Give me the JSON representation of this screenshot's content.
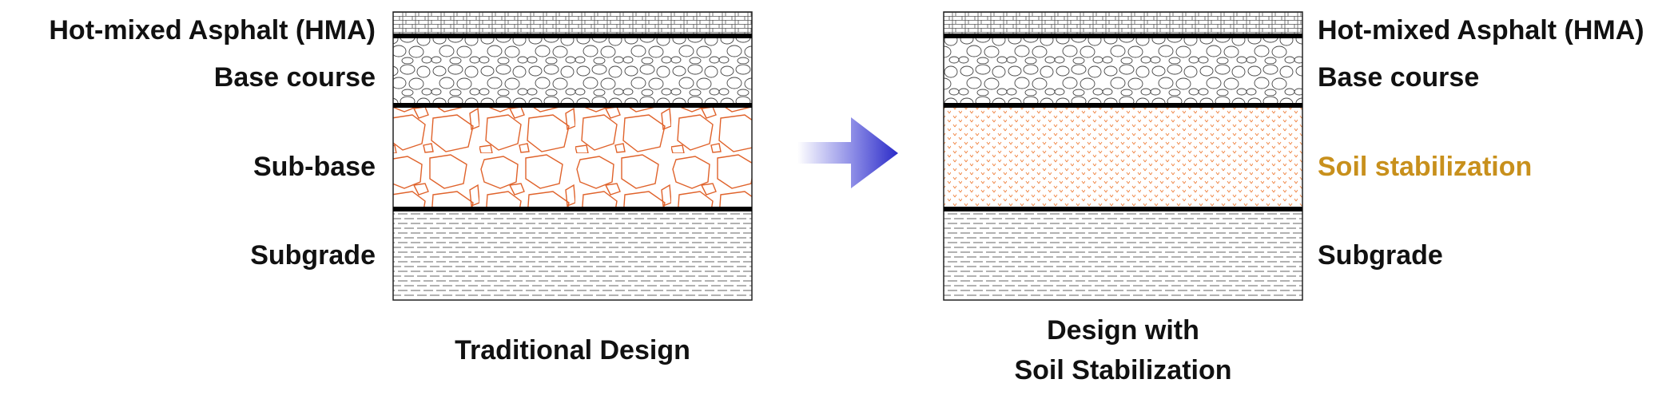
{
  "traditional": {
    "layers": {
      "hma": "Hot-mixed Asphalt (HMA)",
      "base": "Base course",
      "subbase": "Sub-base",
      "subgrade": "Subgrade"
    },
    "caption": "Traditional Design"
  },
  "stabilized": {
    "layers": {
      "hma": "Hot-mixed Asphalt (HMA)",
      "base": "Base course",
      "stabilization": "Soil stabilization",
      "subgrade": "Subgrade"
    },
    "caption_line1": "Design with",
    "caption_line2": "Soil Stabilization"
  },
  "colors": {
    "subbase_stroke": "#E0622A",
    "stabilization_text": "#C8901C",
    "arrow": "#2B2BC8"
  }
}
